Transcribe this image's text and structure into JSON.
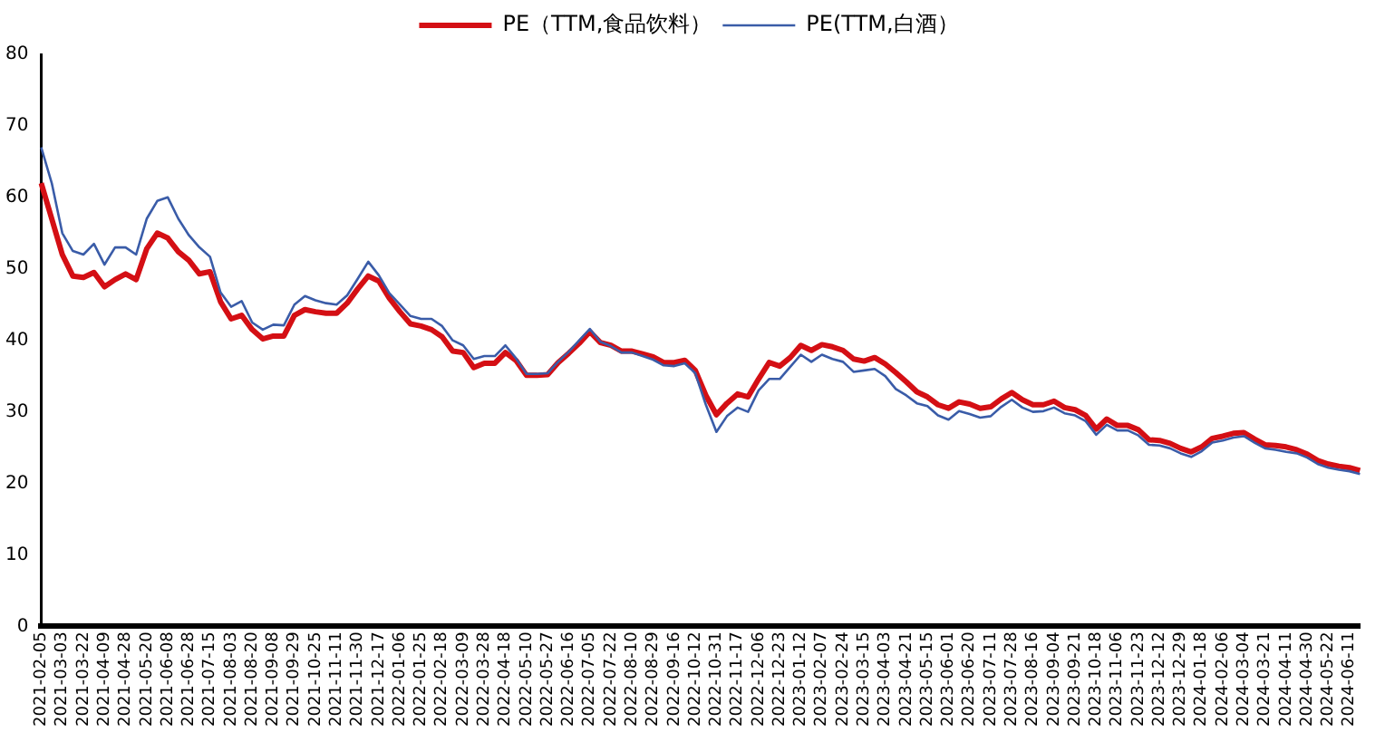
{
  "chart_data": {
    "type": "line",
    "legend": "top",
    "grid": false,
    "marker": "none",
    "line_style": "solid",
    "categories": [
      "2021-02-05",
      null,
      "2021-03-03",
      null,
      "2021-03-22",
      null,
      "2021-04-09",
      null,
      "2021-04-28",
      null,
      "2021-05-20",
      null,
      "2021-06-08",
      null,
      "2021-06-28",
      null,
      "2021-07-15",
      null,
      "2021-08-03",
      null,
      "2021-08-20",
      null,
      "2021-09-08",
      null,
      "2021-09-29",
      null,
      "2021-10-25",
      null,
      "2021-11-11",
      null,
      "2021-11-30",
      null,
      "2021-12-17",
      null,
      "2022-01-06",
      null,
      "2022-01-25",
      null,
      "2022-02-18",
      null,
      "2022-03-09",
      null,
      "2022-03-28",
      null,
      "2022-04-18",
      null,
      "2022-05-10",
      null,
      "2022-05-27",
      null,
      "2022-06-16",
      null,
      "2022-07-05",
      null,
      "2022-07-22",
      null,
      "2022-08-10",
      null,
      "2022-08-29",
      null,
      "2022-09-16",
      null,
      "2022-10-12",
      null,
      "2022-10-31",
      null,
      "2022-11-17",
      null,
      "2022-12-06",
      null,
      "2022-12-23",
      null,
      "2023-01-12",
      null,
      "2023-02-07",
      null,
      "2023-02-24",
      null,
      "2023-03-15",
      null,
      "2023-04-03",
      null,
      "2023-04-21",
      null,
      "2023-05-15",
      null,
      "2023-06-01",
      null,
      "2023-06-20",
      null,
      "2023-07-11",
      null,
      "2023-07-28",
      null,
      "2023-08-16",
      null,
      "2023-09-04",
      null,
      "2023-09-21",
      null,
      "2023-10-18",
      null,
      "2023-11-06",
      null,
      "2023-11-23",
      null,
      "2023-12-12",
      null,
      "2023-12-29",
      null,
      "2024-01-18",
      null,
      "2024-02-06",
      null,
      "2024-03-04",
      null,
      "2024-03-21",
      null,
      "2024-04-11",
      null,
      "2024-04-30",
      null,
      "2024-05-22",
      null,
      "2024-06-11",
      null
    ],
    "ylim": [
      0,
      80
    ],
    "yticks": [
      0,
      10,
      20,
      30,
      40,
      50,
      60,
      70,
      80
    ],
    "series": [
      {
        "name": "PE（TTM,食品饮料）",
        "color": "#d40f14",
        "values": [
          62,
          57,
          52,
          49,
          48.8,
          49.5,
          47.5,
          48.5,
          49.3,
          48.5,
          52.8,
          55,
          54.3,
          52.4,
          51.2,
          49.3,
          49.6,
          45.4,
          43,
          43.5,
          41.5,
          40.2,
          40.6,
          40.6,
          43.5,
          44.3,
          44,
          43.8,
          43.8,
          45.2,
          47.2,
          49,
          48.3,
          45.9,
          44,
          42.3,
          42,
          41.5,
          40.5,
          38.5,
          38.3,
          36.2,
          36.8,
          36.8,
          38.3,
          37.2,
          35.1,
          35.1,
          35.2,
          36.9,
          38.2,
          39.6,
          41.2,
          39.7,
          39.3,
          38.5,
          38.5,
          38.1,
          37.7,
          36.9,
          36.9,
          37.2,
          35.8,
          32.3,
          29.6,
          31.2,
          32.5,
          32.1,
          34.6,
          36.9,
          36.4,
          37.6,
          39.3,
          38.6,
          39.4,
          39.1,
          38.6,
          37.4,
          37.1,
          37.6,
          36.7,
          35.5,
          34.2,
          32.8,
          32.1,
          31,
          30.5,
          31.4,
          31.1,
          30.5,
          30.7,
          31.8,
          32.7,
          31.7,
          31,
          31,
          31.5,
          30.6,
          30.3,
          29.5,
          27.6,
          29,
          28.1,
          28.1,
          27.5,
          26.1,
          26,
          25.6,
          24.9,
          24.4,
          25.1,
          26.3,
          26.6,
          27,
          27.1,
          26.2,
          25.4,
          25.3,
          25.1,
          24.7,
          24.1,
          23.2,
          22.7,
          22.4,
          22.2,
          21.8
        ]
      },
      {
        "name": "PE(TTM,白酒）",
        "color": "#3a5ca8",
        "values": [
          67,
          62,
          55,
          52.5,
          52,
          53.5,
          50.6,
          53,
          53,
          52,
          57,
          59.5,
          60,
          57,
          54.7,
          53,
          51.7,
          46.7,
          44.7,
          45.5,
          42.5,
          41.5,
          42.2,
          42.1,
          45,
          46.2,
          45.6,
          45.2,
          45,
          46.3,
          48.6,
          51,
          49.1,
          46.6,
          45,
          43.4,
          43,
          43,
          42,
          40,
          39.3,
          37.4,
          37.8,
          37.8,
          39.3,
          37.5,
          35.3,
          35.3,
          35.4,
          37,
          38.4,
          40,
          41.6,
          39.8,
          39.2,
          38.3,
          38.3,
          37.8,
          37.3,
          36.5,
          36.4,
          36.8,
          35.4,
          31,
          27.2,
          29.4,
          30.6,
          30,
          33,
          34.6,
          34.6,
          36.3,
          38,
          37,
          38,
          37.4,
          37,
          35.6,
          35.8,
          36,
          35,
          33.2,
          32.3,
          31.2,
          30.8,
          29.5,
          28.9,
          30.1,
          29.7,
          29.2,
          29.4,
          30.7,
          31.7,
          30.6,
          30,
          30.1,
          30.6,
          29.8,
          29.5,
          28.7,
          26.8,
          28.2,
          27.4,
          27.4,
          26.7,
          25.4,
          25.3,
          24.9,
          24.2,
          23.7,
          24.5,
          25.7,
          26,
          26.4,
          26.6,
          25.7,
          24.9,
          24.7,
          24.4,
          24.2,
          23.6,
          22.7,
          22.2,
          21.9,
          21.7,
          21.3
        ]
      }
    ]
  }
}
